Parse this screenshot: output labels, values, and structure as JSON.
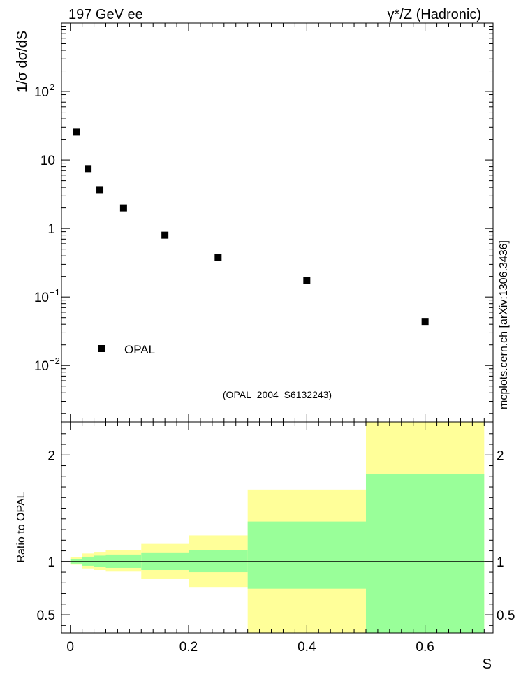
{
  "header": {
    "left_title": "197 GeV ee",
    "right_title": "γ*/Z (Hadronic)"
  },
  "watermark": "mcplots.cern.ch [arXiv:1306.3436]",
  "analysis_label": "(OPAL_2004_S6132243)",
  "colors": {
    "yellow_band": "#ffff99",
    "green_band": "#99ff99",
    "marker": "#000000",
    "analysis_text": "#999999",
    "watermark_text": "#666666"
  },
  "chart_data": [
    {
      "type": "scatter",
      "title": "",
      "ylabel": "1/σ dσ/dS",
      "xlabel": "",
      "yscale": "log",
      "xlim": [
        -0.015,
        0.715
      ],
      "ylim": [
        0.0015,
        1000
      ],
      "y_ticks": [
        {
          "value": 0.01,
          "base": "10",
          "exp": "−2"
        },
        {
          "value": 0.1,
          "base": "10",
          "exp": "−1"
        },
        {
          "value": 1,
          "base": "1",
          "exp": ""
        },
        {
          "value": 10,
          "base": "10",
          "exp": ""
        },
        {
          "value": 100,
          "base": "10",
          "exp": "2"
        }
      ],
      "legend": {
        "label": "OPAL",
        "position": "bottom-left"
      },
      "series": [
        {
          "name": "OPAL",
          "x": [
            0.01,
            0.03,
            0.05,
            0.09,
            0.16,
            0.25,
            0.4,
            0.6
          ],
          "y": [
            26,
            7.5,
            3.7,
            2.0,
            0.8,
            0.38,
            0.175,
            0.044
          ]
        }
      ]
    },
    {
      "type": "area",
      "ylabel": "Ratio to OPAL",
      "xlabel": "S",
      "xlim": [
        -0.015,
        0.715
      ],
      "ylim": [
        0.33,
        2.31
      ],
      "x_ticks": [
        {
          "value": 0,
          "label": "0"
        },
        {
          "value": 0.2,
          "label": "0.2"
        },
        {
          "value": 0.4,
          "label": "0.4"
        },
        {
          "value": 0.6,
          "label": "0.6"
        }
      ],
      "y_ticks": [
        {
          "value": 0.5,
          "label": "0.5"
        },
        {
          "value": 1,
          "label": "1"
        },
        {
          "value": 2,
          "label": "2"
        }
      ],
      "reference_line": 1,
      "bins": [
        {
          "x0": 0.0,
          "x1": 0.02,
          "yellow": [
            0.97,
            1.04
          ],
          "green": [
            0.98,
            1.025
          ]
        },
        {
          "x0": 0.02,
          "x1": 0.04,
          "yellow": [
            0.935,
            1.075
          ],
          "green": [
            0.96,
            1.045
          ]
        },
        {
          "x0": 0.04,
          "x1": 0.06,
          "yellow": [
            0.92,
            1.09
          ],
          "green": [
            0.95,
            1.055
          ]
        },
        {
          "x0": 0.06,
          "x1": 0.12,
          "yellow": [
            0.905,
            1.105
          ],
          "green": [
            0.94,
            1.065
          ]
        },
        {
          "x0": 0.12,
          "x1": 0.2,
          "yellow": [
            0.835,
            1.165
          ],
          "green": [
            0.92,
            1.085
          ]
        },
        {
          "x0": 0.2,
          "x1": 0.3,
          "yellow": [
            0.755,
            1.245
          ],
          "green": [
            0.9,
            1.105
          ]
        },
        {
          "x0": 0.3,
          "x1": 0.5,
          "yellow": [
            0.33,
            1.675
          ],
          "green": [
            0.745,
            1.375
          ]
        },
        {
          "x0": 0.5,
          "x1": 0.7,
          "yellow": [
            0.33,
            2.31
          ],
          "green": [
            0.33,
            1.82
          ]
        }
      ]
    }
  ]
}
